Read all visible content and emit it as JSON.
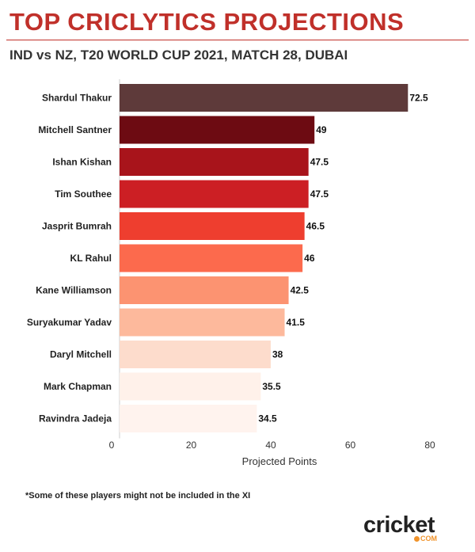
{
  "header": {
    "title": "TOP CRICLYTICS PROJECTIONS",
    "subtitle": "IND vs NZ, T20 WORLD CUP 2021, MATCH 28, DUBAI"
  },
  "chart_data": {
    "type": "bar",
    "orientation": "horizontal",
    "categories": [
      "Shardul Thakur",
      "Mitchell Santner",
      "Ishan Kishan",
      "Tim Southee",
      "Jasprit Bumrah",
      "KL Rahul",
      "Kane Williamson",
      "Suryakumar Yadav",
      "Daryl Mitchell",
      "Mark Chapman",
      "Ravindra Jadeja"
    ],
    "values": [
      72.5,
      49,
      47.5,
      47.5,
      46.5,
      46,
      42.5,
      41.5,
      38,
      35.5,
      34.5
    ],
    "value_labels": [
      "72.5",
      "49",
      "47.5",
      "47.5",
      "46.5",
      "46",
      "42.5",
      "41.5",
      "38",
      "35.5",
      "34.5"
    ],
    "colors": [
      "#5e3a3a",
      "#6d0b12",
      "#a8141b",
      "#cc1f24",
      "#ee3e2f",
      "#fc6a4d",
      "#fc9371",
      "#fdb99c",
      "#fddccc",
      "#fff1ea",
      "#fff3ee"
    ],
    "xlabel": "Projected Points",
    "ylabel": "",
    "xlim": [
      0,
      80
    ],
    "xticks": [
      0,
      20,
      40,
      60,
      80
    ],
    "grid": false
  },
  "footnote": "*Some of these players might not be included in the XI",
  "logo": {
    "word": "cricket",
    "sub": "COM"
  }
}
